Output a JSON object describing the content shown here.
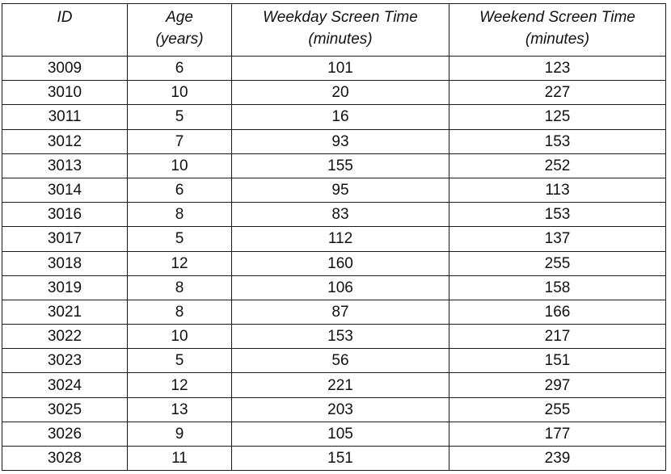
{
  "table": {
    "headers": [
      {
        "line1": "ID",
        "line2": ""
      },
      {
        "line1": "Age",
        "line2": "(years)"
      },
      {
        "line1": "Weekday Screen Time",
        "line2": "(minutes)"
      },
      {
        "line1": "Weekend Screen Time",
        "line2": "(minutes)"
      }
    ],
    "rows": [
      [
        "3009",
        "6",
        "101",
        "123"
      ],
      [
        "3010",
        "10",
        "20",
        "227"
      ],
      [
        "3011",
        "5",
        "16",
        "125"
      ],
      [
        "3012",
        "7",
        "93",
        "153"
      ],
      [
        "3013",
        "10",
        "155",
        "252"
      ],
      [
        "3014",
        "6",
        "95",
        "113"
      ],
      [
        "3016",
        "8",
        "83",
        "153"
      ],
      [
        "3017",
        "5",
        "112",
        "137"
      ],
      [
        "3018",
        "12",
        "160",
        "255"
      ],
      [
        "3019",
        "8",
        "106",
        "158"
      ],
      [
        "3021",
        "8",
        "87",
        "166"
      ],
      [
        "3022",
        "10",
        "153",
        "217"
      ],
      [
        "3023",
        "5",
        "56",
        "151"
      ],
      [
        "3024",
        "12",
        "221",
        "297"
      ],
      [
        "3025",
        "13",
        "203",
        "255"
      ],
      [
        "3026",
        "9",
        "105",
        "177"
      ],
      [
        "3028",
        "11",
        "151",
        "239"
      ]
    ]
  }
}
